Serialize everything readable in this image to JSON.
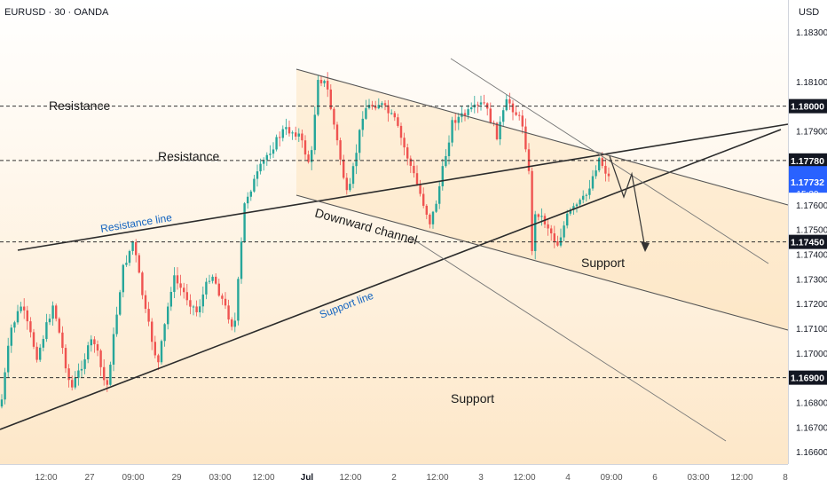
{
  "header": {
    "symbol": "EURUSD · 30 · OANDA",
    "currency": "USD"
  },
  "chart_data": {
    "type": "candlestick",
    "ylim": [
      1.1655,
      1.1843
    ],
    "price_axis": [
      "1.18300",
      "1.18100",
      "1.17900",
      "1.17600",
      "1.17500",
      "1.17400",
      "1.17300",
      "1.17200",
      "1.17100",
      "1.17000",
      "1.16800",
      "1.16700",
      "1.16600"
    ],
    "time_axis": [
      "12:00",
      "27",
      "09:00",
      "29",
      "03:00",
      "12:00",
      "Jul",
      "12:00",
      "2",
      "12:00",
      "3",
      "12:00",
      "4",
      "09:00",
      "6",
      "03:00",
      "12:00",
      "8"
    ],
    "levels": [
      {
        "price": 1.18,
        "label": "1.18000"
      },
      {
        "price": 1.1778,
        "label": "1.17780"
      },
      {
        "price": 1.1745,
        "label": "1.17450"
      },
      {
        "price": 1.169,
        "label": "1.16900"
      }
    ],
    "current_price": {
      "label": "1.17732",
      "countdown": "15:39",
      "color": "#2962ff"
    },
    "annotations": {
      "resistance_top": "Resistance",
      "resistance_mid": "Resistance",
      "resistance_line": "Resistance line",
      "downward_channel": "Downward channel",
      "support_line": "Support line",
      "support_mid": "Support",
      "support_bottom": "Support"
    },
    "colors": {
      "up": "#26a69a",
      "down": "#ef5350",
      "label_blue": "#1565c0",
      "zone": "#fdebc8"
    }
  }
}
